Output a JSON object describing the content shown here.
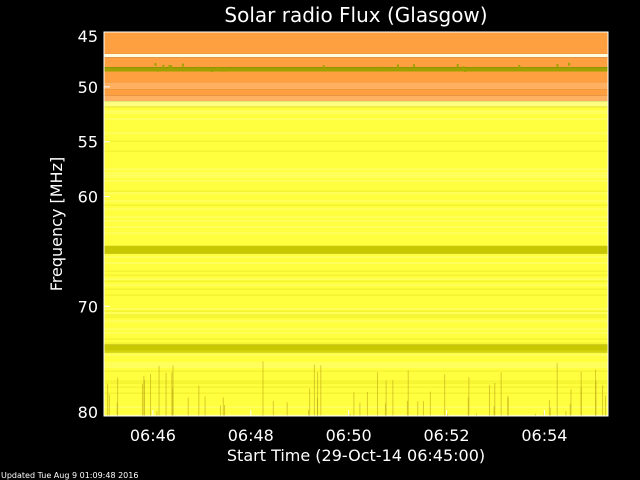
{
  "chart_data": {
    "type": "heatmap",
    "title": "Solar radio Flux (Glasgow)",
    "xlabel": "Start Time (29-Oct-14 06:45:00)",
    "ylabel": "Frequency [MHz]",
    "x_ticks": [
      "06:46",
      "06:48",
      "06:50",
      "06:52",
      "06:54"
    ],
    "x_tick_minutes": [
      1,
      3,
      5,
      7,
      9
    ],
    "xlim_minutes": [
      0,
      10.3
    ],
    "y_ticks": [
      45,
      50,
      55,
      60,
      70,
      80
    ],
    "ylim": [
      45,
      80
    ],
    "y_inverted": true,
    "colors": {
      "orange": "#FFA040",
      "orange_light": "#FFB060",
      "olive": "#A0A000",
      "yellow": "#FFFF40",
      "yellow_pale": "#FFFF80",
      "yellow_dark": "#C8C800",
      "white": "#FFFFE0"
    },
    "bands": [
      {
        "from": 45.0,
        "to": 47.0,
        "color": "orange"
      },
      {
        "from": 47.0,
        "to": 47.3,
        "color": "white"
      },
      {
        "from": 47.3,
        "to": 48.2,
        "color": "orange"
      },
      {
        "from": 48.2,
        "to": 48.6,
        "color": "olive"
      },
      {
        "from": 48.6,
        "to": 49.6,
        "color": "orange"
      },
      {
        "from": 49.6,
        "to": 50.2,
        "color": "orange_light"
      },
      {
        "from": 50.2,
        "to": 50.8,
        "color": "orange"
      },
      {
        "from": 50.8,
        "to": 51.3,
        "color": "orange_light"
      },
      {
        "from": 51.3,
        "to": 51.8,
        "color": "yellow_pale"
      },
      {
        "from": 51.8,
        "to": 64.5,
        "color": "yellow"
      },
      {
        "from": 64.5,
        "to": 65.2,
        "color": "yellow_dark"
      },
      {
        "from": 65.2,
        "to": 73.5,
        "color": "yellow"
      },
      {
        "from": 73.5,
        "to": 74.2,
        "color": "yellow_dark"
      },
      {
        "from": 74.2,
        "to": 80.0,
        "color": "yellow"
      }
    ]
  },
  "footer": {
    "updated": "Updated Tue Aug  9 01:09:48 2016"
  }
}
